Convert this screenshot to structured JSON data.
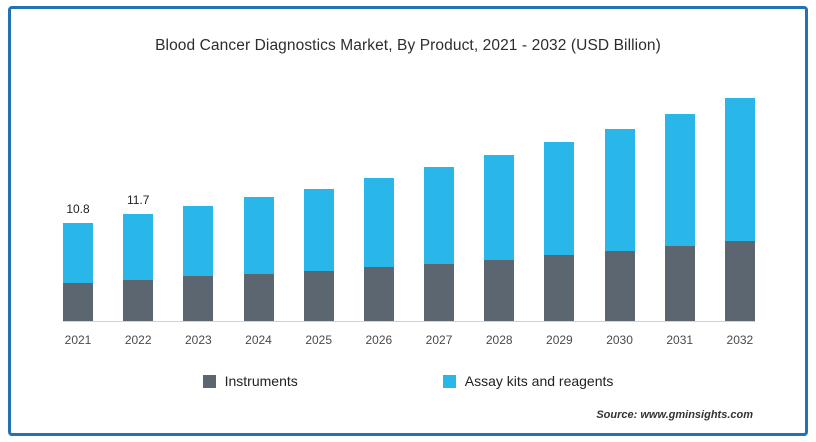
{
  "title": "Blood Cancer Diagnostics Market, By Product, 2021 - 2032 (USD Billion)",
  "source": "Source: www.gminsights.com",
  "colors": {
    "instruments": "#5b6670",
    "assay": "#29b7ea",
    "border": "#2173b6",
    "axis_line": "#cfd2d6"
  },
  "legend": [
    {
      "label": "Instruments",
      "color": "#5b6670"
    },
    {
      "label": "Assay kits and reagents",
      "color": "#29b7ea"
    }
  ],
  "chart_data": {
    "type": "bar",
    "stacked": true,
    "title": "Blood Cancer Diagnostics Market, By Product, 2021 - 2032 (USD Billion)",
    "xlabel": "",
    "ylabel": "",
    "ylim": [
      0,
      25
    ],
    "grid": false,
    "legend_position": "bottom",
    "categories": [
      "2021",
      "2022",
      "2023",
      "2024",
      "2025",
      "2026",
      "2027",
      "2028",
      "2029",
      "2030",
      "2031",
      "2032"
    ],
    "series": [
      {
        "name": "Instruments",
        "color": "#5b6670",
        "values": [
          4.2,
          4.5,
          4.9,
          5.2,
          5.5,
          5.9,
          6.3,
          6.7,
          7.2,
          7.7,
          8.2,
          8.8
        ]
      },
      {
        "name": "Assay kits and reagents",
        "color": "#29b7ea",
        "values": [
          6.6,
          7.2,
          7.7,
          8.4,
          9.0,
          9.8,
          10.6,
          11.5,
          12.4,
          13.4,
          14.5,
          15.7
        ]
      }
    ],
    "totals": [
      10.8,
      11.7,
      12.6,
      13.6,
      14.5,
      15.7,
      16.9,
      18.2,
      19.6,
      21.1,
      22.7,
      24.5
    ],
    "data_labels": [
      "10.8",
      "11.7",
      null,
      null,
      null,
      null,
      null,
      null,
      null,
      null,
      null,
      null
    ]
  }
}
